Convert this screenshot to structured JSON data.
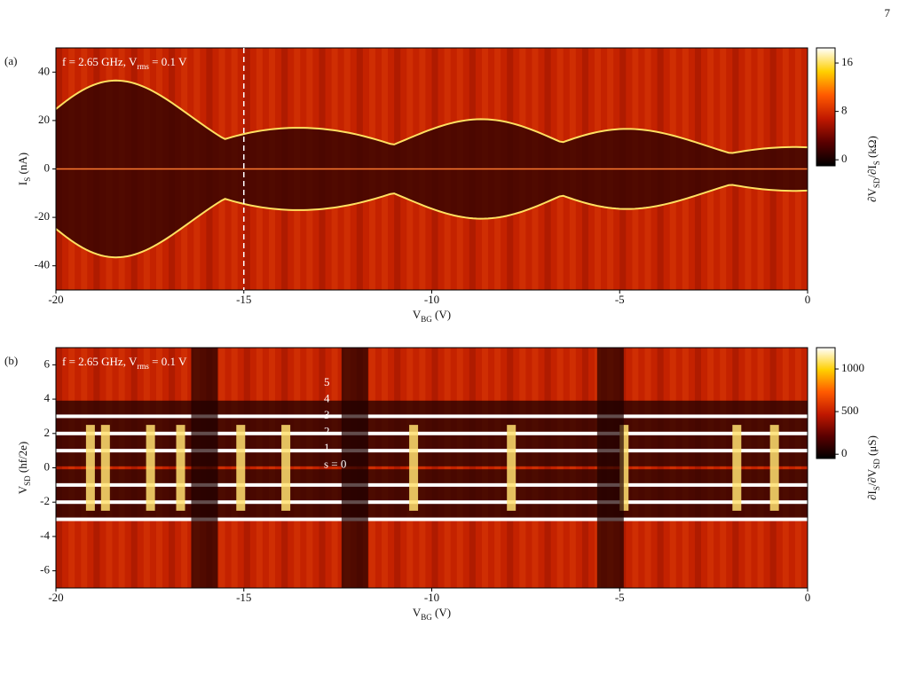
{
  "page_number": "7",
  "chart_data": [
    {
      "type": "heatmap",
      "panel_label": "(a)",
      "annotation": "f = 2.65 GHz, V_{rms} = 0.1 V",
      "xlabel": "V_{BG} (V)",
      "ylabel": "I_{S} (nA)",
      "colorbar_label": "∂V_{SD}/∂I_{S} (kΩ)",
      "xlim": [
        -20,
        0
      ],
      "xticks": [
        -20,
        -15,
        -10,
        -5,
        0
      ],
      "ylim": [
        -50,
        50
      ],
      "yticks": [
        -40,
        -20,
        0,
        20,
        40
      ],
      "colorbar_lim": [
        -1,
        18.5
      ],
      "colorbar_ticks": [
        0,
        8,
        16
      ],
      "colormap": [
        "#000000",
        "#5a0000",
        "#c01800",
        "#ff5a00",
        "#ffd000",
        "#ffffff"
      ],
      "marker_x": -15
    },
    {
      "type": "heatmap",
      "panel_label": "(b)",
      "annotation": "f = 2.65 GHz, V_{rms} = 0.1 V",
      "xlabel": "V_{BG} (V)",
      "ylabel": "V_{SD} (hf/2e)",
      "colorbar_label": "∂I_{S}/∂V_{SD} (μS)",
      "xlim": [
        -20,
        0
      ],
      "xticks": [
        -20,
        -15,
        -10,
        -5,
        0
      ],
      "ylim": [
        -7,
        7
      ],
      "yticks": [
        -6,
        -4,
        -2,
        0,
        2,
        4,
        6
      ],
      "colorbar_lim": [
        -50,
        1250
      ],
      "colorbar_ticks": [
        0,
        500,
        1000
      ],
      "colormap": [
        "#000000",
        "#5a0000",
        "#c01800",
        "#ff5a00",
        "#ffd000",
        "#ffffff"
      ],
      "level_labels": [
        "5",
        "4",
        "3",
        "2",
        "1",
        "s = 0"
      ]
    }
  ]
}
